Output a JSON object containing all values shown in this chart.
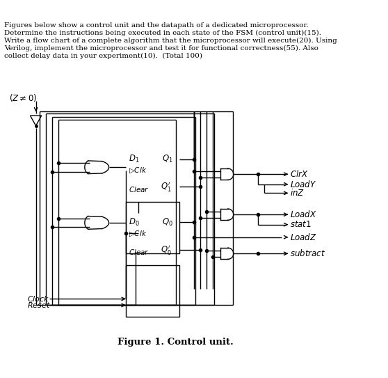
{
  "title_text": "Figure 1. Control unit.",
  "paragraph_lines": [
    "Figures below show a control unit and the datapath of a dedicated microprocessor.",
    "Determine the instructions being executed in each state of the FSM (control unit)(15).",
    "Write a flow chart of a complete algorithm that the microprocessor will execute(20). Using",
    "Verilog, implement the microprocessor and test it for functional correctness(55). Also",
    "collect delay data in your experiment(10).  (Total 100)"
  ],
  "out_labels": [
    "ClrX",
    "LoadY",
    "inZ",
    "LoadX",
    "stat1",
    "LoadZ",
    "subtract"
  ],
  "background": "#ffffff"
}
